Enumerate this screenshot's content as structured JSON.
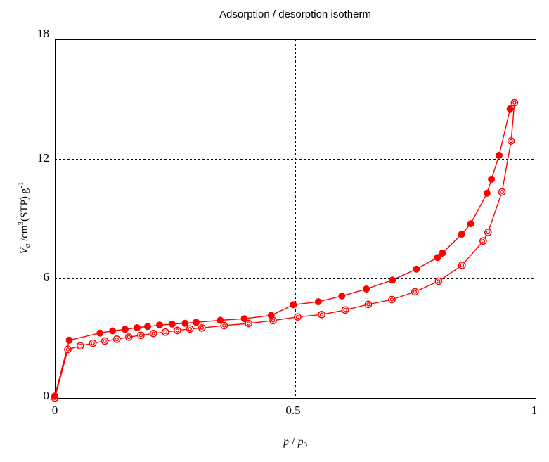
{
  "title": "Adsorption / desorption isotherm",
  "axes": {
    "y_ticks": [
      "18",
      "12",
      "6",
      "0"
    ],
    "x_ticks": [
      "0",
      "0.5",
      "1"
    ]
  },
  "ylabel": {
    "v": "V",
    "sub": "a",
    "mid": " /cm",
    "sup3": "3",
    "stp": "(STP) g",
    "supm1": "-1"
  },
  "xlabel": {
    "p1": "p",
    "slash": " / ",
    "p2": "p",
    "sub0": "0"
  },
  "colors": {
    "curve": "#ff0000",
    "axis": "#000000",
    "background": "#ffffff"
  },
  "chart_data": {
    "type": "line",
    "title": "Adsorption / desorption isotherm",
    "xlabel": "p / p0",
    "ylabel": "Va /cm3(STP) g-1",
    "xlim": [
      0,
      1
    ],
    "ylim": [
      0,
      18
    ],
    "x_ticks": [
      0,
      0.5,
      1
    ],
    "y_ticks": [
      0,
      6,
      12,
      18
    ],
    "grid": {
      "x": [
        0.5
      ],
      "y": [
        6,
        12
      ],
      "style": "dashed"
    },
    "legend": "none",
    "series": [
      {
        "name": "adsorption",
        "marker": "double-circle",
        "color": "#ff0000",
        "points": [
          [
            0.0,
            0.0
          ],
          [
            0.027,
            2.44
          ],
          [
            0.053,
            2.62
          ],
          [
            0.079,
            2.75
          ],
          [
            0.104,
            2.86
          ],
          [
            0.129,
            2.95
          ],
          [
            0.154,
            3.06
          ],
          [
            0.179,
            3.15
          ],
          [
            0.205,
            3.24
          ],
          [
            0.23,
            3.31
          ],
          [
            0.255,
            3.39
          ],
          [
            0.281,
            3.47
          ],
          [
            0.306,
            3.52
          ],
          [
            0.352,
            3.64
          ],
          [
            0.403,
            3.74
          ],
          [
            0.454,
            3.89
          ],
          [
            0.505,
            4.07
          ],
          [
            0.555,
            4.19
          ],
          [
            0.604,
            4.42
          ],
          [
            0.652,
            4.7
          ],
          [
            0.701,
            4.94
          ],
          [
            0.749,
            5.33
          ],
          [
            0.798,
            5.86
          ],
          [
            0.847,
            6.66
          ],
          [
            0.891,
            7.88
          ],
          [
            0.901,
            8.31
          ],
          [
            0.93,
            10.34
          ],
          [
            0.949,
            12.9
          ],
          [
            0.956,
            14.82
          ]
        ]
      },
      {
        "name": "desorption",
        "marker": "filled-circle",
        "color": "#ff0000",
        "skip_last_marker": true,
        "points": [
          [
            0.0,
            0.1
          ],
          [
            0.03,
            2.9
          ],
          [
            0.094,
            3.26
          ],
          [
            0.12,
            3.37
          ],
          [
            0.146,
            3.45
          ],
          [
            0.171,
            3.53
          ],
          [
            0.193,
            3.59
          ],
          [
            0.218,
            3.66
          ],
          [
            0.244,
            3.71
          ],
          [
            0.271,
            3.75
          ],
          [
            0.294,
            3.8
          ],
          [
            0.344,
            3.9
          ],
          [
            0.394,
            3.98
          ],
          [
            0.45,
            4.15
          ],
          [
            0.496,
            4.68
          ],
          [
            0.548,
            4.83
          ],
          [
            0.597,
            5.12
          ],
          [
            0.648,
            5.47
          ],
          [
            0.702,
            5.92
          ],
          [
            0.752,
            6.47
          ],
          [
            0.796,
            7.05
          ],
          [
            0.806,
            7.27
          ],
          [
            0.846,
            8.22
          ],
          [
            0.865,
            8.75
          ],
          [
            0.899,
            10.28
          ],
          [
            0.908,
            10.98
          ],
          [
            0.924,
            12.18
          ],
          [
            0.947,
            14.51
          ],
          [
            0.956,
            14.82
          ]
        ]
      }
    ]
  }
}
